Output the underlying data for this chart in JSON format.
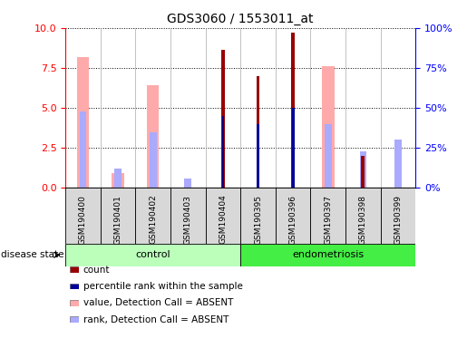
{
  "title": "GDS3060 / 1553011_at",
  "samples": [
    "GSM190400",
    "GSM190401",
    "GSM190402",
    "GSM190403",
    "GSM190404",
    "GSM190395",
    "GSM190396",
    "GSM190397",
    "GSM190398",
    "GSM190399"
  ],
  "groups": [
    "control",
    "control",
    "control",
    "control",
    "control",
    "endometriosis",
    "endometriosis",
    "endometriosis",
    "endometriosis",
    "endometriosis"
  ],
  "value_absent": [
    8.2,
    0.9,
    6.4,
    null,
    null,
    null,
    null,
    7.6,
    null,
    null
  ],
  "rank_absent": [
    4.8,
    1.2,
    3.5,
    0.6,
    null,
    null,
    null,
    4.0,
    2.3,
    3.0
  ],
  "count": [
    null,
    null,
    null,
    null,
    8.6,
    7.0,
    9.7,
    null,
    2.0,
    null
  ],
  "percentile_rank": [
    null,
    null,
    null,
    null,
    4.5,
    4.0,
    5.0,
    null,
    null,
    null
  ],
  "ylim": [
    0,
    10
  ],
  "y2lim": [
    0,
    100
  ],
  "yticks": [
    0,
    2.5,
    5,
    7.5,
    10
  ],
  "y2ticks": [
    0,
    25,
    50,
    75,
    100
  ],
  "color_count": "#990000",
  "color_percentile": "#000099",
  "color_value_absent": "#ffaaaa",
  "color_rank_absent": "#aaaaff",
  "color_control": "#bbffbb",
  "color_endo": "#44ee44",
  "color_sample_box": "#d8d8d8",
  "legend_labels": [
    "count",
    "percentile rank within the sample",
    "value, Detection Call = ABSENT",
    "rank, Detection Call = ABSENT"
  ],
  "legend_colors": [
    "#990000",
    "#000099",
    "#ffaaaa",
    "#aaaaff"
  ]
}
